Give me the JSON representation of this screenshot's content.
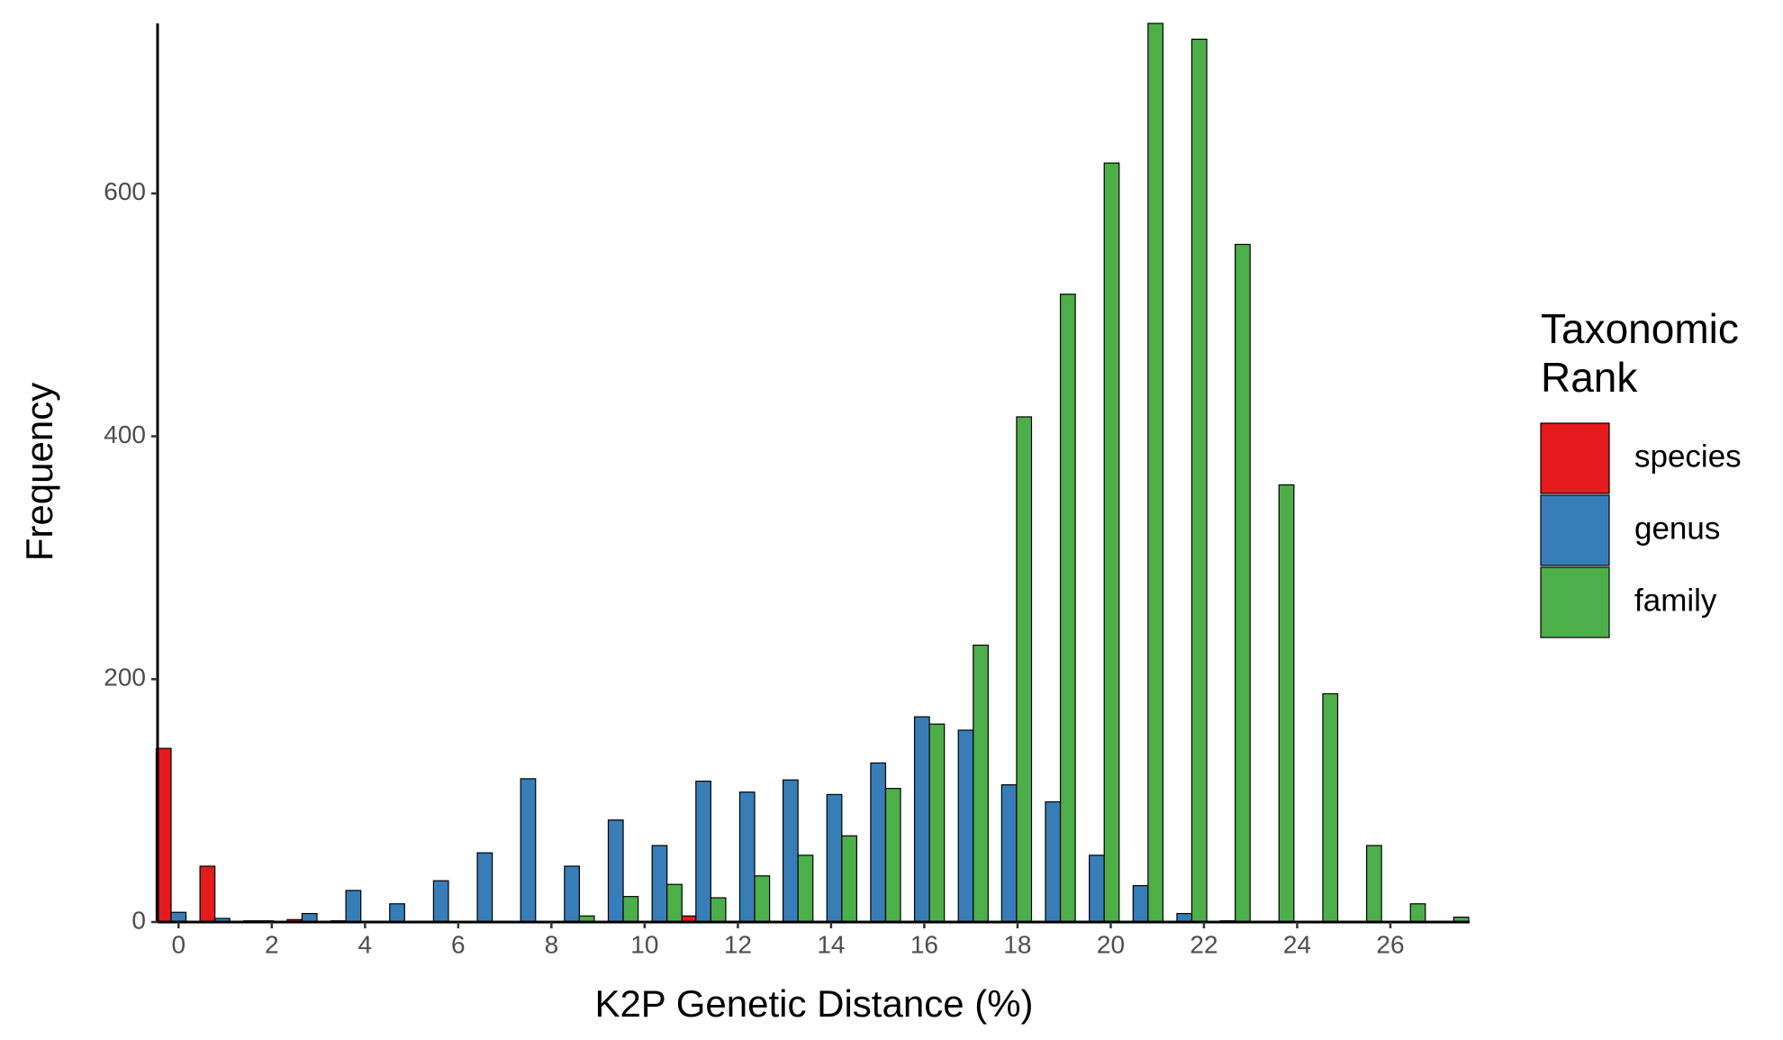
{
  "chart_data": {
    "type": "dodged-histogram",
    "xlabel": "K2P Genetic Distance (%)",
    "ylabel": "Frequency",
    "legend_title": "Taxonomic Rank",
    "legend_position": "right",
    "x": [
      0,
      0.94,
      1.88,
      2.81,
      3.75,
      4.69,
      5.63,
      6.57,
      7.5,
      8.44,
      9.38,
      10.32,
      11.26,
      12.2,
      13.13,
      14.07,
      15.01,
      15.95,
      16.89,
      17.82,
      18.76,
      19.7,
      20.64,
      21.58,
      22.51,
      23.45,
      24.39,
      25.33,
      26.27,
      27.2
    ],
    "series": [
      {
        "name": "species",
        "color": "#e41a1c",
        "values": [
          143,
          46,
          1,
          2,
          1,
          0,
          0,
          0,
          0,
          0,
          0,
          0,
          5,
          0,
          0,
          0,
          0,
          0,
          0,
          0,
          0,
          0,
          0,
          0,
          0,
          0,
          0,
          0,
          0,
          0
        ]
      },
      {
        "name": "genus",
        "color": "#377eb8",
        "values": [
          8,
          3,
          1,
          7,
          26,
          15,
          34,
          57,
          118,
          46,
          84,
          63,
          116,
          107,
          117,
          105,
          131,
          169,
          158,
          113,
          99,
          55,
          30,
          7,
          1,
          0,
          0,
          0,
          0,
          0
        ]
      },
      {
        "name": "family",
        "color": "#4daf4a",
        "values": [
          0,
          0,
          0,
          0,
          0,
          0,
          0,
          0,
          0,
          5,
          21,
          31,
          20,
          38,
          55,
          71,
          110,
          163,
          228,
          416,
          517,
          625,
          740,
          727,
          558,
          360,
          188,
          63,
          15,
          4
        ]
      }
    ],
    "xlim": [
      -0.45,
      27.7
    ],
    "ylim": [
      0,
      740
    ],
    "xticks": [
      0,
      2,
      4,
      6,
      8,
      10,
      12,
      14,
      16,
      18,
      20,
      22,
      24,
      26
    ],
    "yticks": [
      0,
      200,
      400,
      600
    ],
    "grid": false
  }
}
